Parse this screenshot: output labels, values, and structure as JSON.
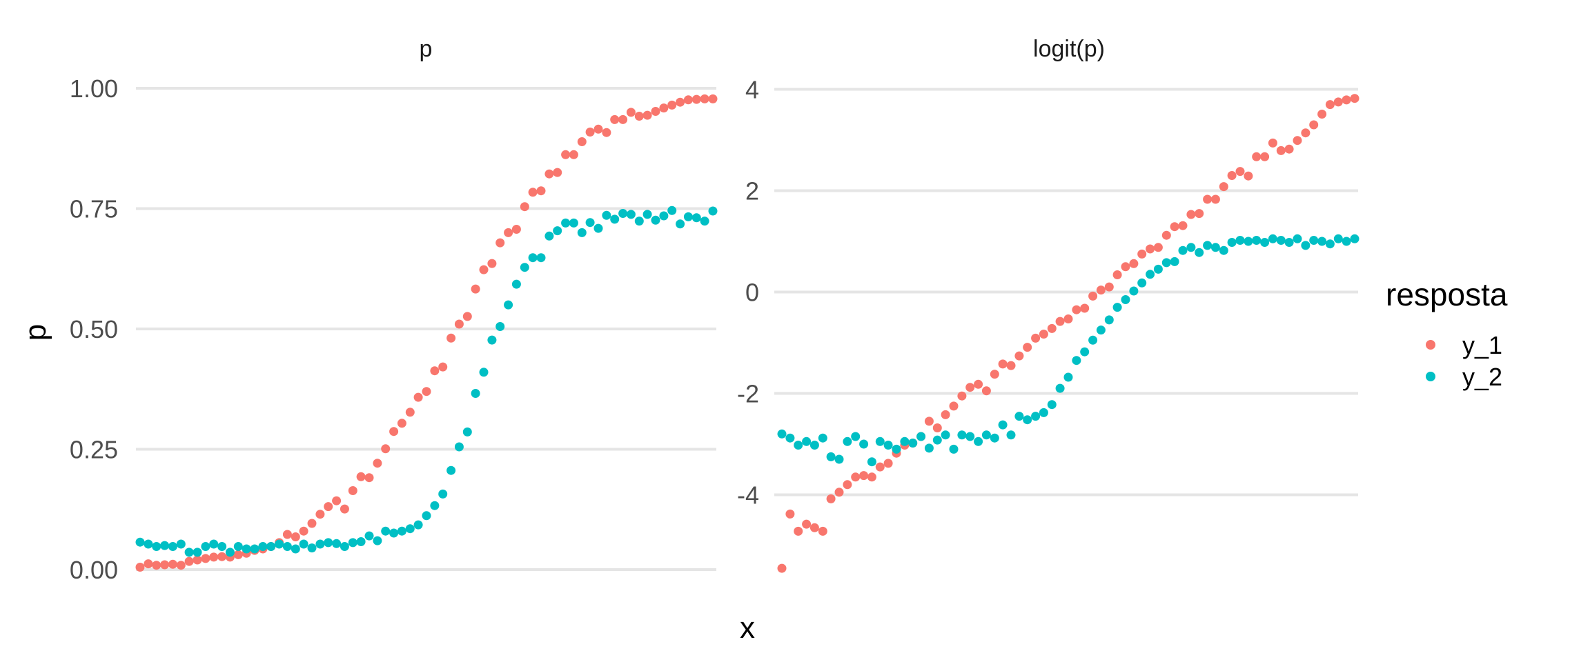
{
  "chart_data": {
    "type": "scatter",
    "facets": [
      "p",
      "logit(p)"
    ],
    "xlabel": "x",
    "ylabel": "p",
    "legend": {
      "title": "resposta",
      "position": "right",
      "entries": [
        {
          "name": "y_1",
          "color": "#f8766d"
        },
        {
          "name": "y_2",
          "color": "#00bfc4"
        }
      ]
    },
    "grid": {
      "major_y": true,
      "x": false
    },
    "panels": [
      {
        "facet": "p",
        "ylim": [
          -0.0,
          1.0
        ],
        "yticks": [
          0.0,
          0.25,
          0.5,
          0.75,
          1.0
        ],
        "ytick_labels": [
          "0.00",
          "0.25",
          "0.50",
          "0.75",
          "1.00"
        ],
        "series": [
          {
            "name": "y_1",
            "values": [
              0.005,
              0.012,
              0.009,
              0.01,
              0.011,
              0.009,
              0.017,
              0.02,
              0.023,
              0.026,
              0.027,
              0.026,
              0.031,
              0.034,
              0.04,
              0.043,
              0.048,
              0.056,
              0.073,
              0.068,
              0.08,
              0.096,
              0.115,
              0.131,
              0.143,
              0.126,
              0.164,
              0.193,
              0.191,
              0.221,
              0.251,
              0.287,
              0.304,
              0.327,
              0.358,
              0.37,
              0.413,
              0.421,
              0.481,
              0.51,
              0.526,
              0.583,
              0.623,
              0.636,
              0.679,
              0.7,
              0.707,
              0.754,
              0.784,
              0.787,
              0.822,
              0.825,
              0.862,
              0.862,
              0.889,
              0.909,
              0.915,
              0.908,
              0.935,
              0.935,
              0.95,
              0.942,
              0.944,
              0.952,
              0.959,
              0.965,
              0.971,
              0.976,
              0.977,
              0.978,
              0.978
            ]
          },
          {
            "name": "y_2",
            "values": [
              0.057,
              0.053,
              0.048,
              0.05,
              0.048,
              0.053,
              0.036,
              0.036,
              0.048,
              0.053,
              0.048,
              0.036,
              0.048,
              0.043,
              0.043,
              0.048,
              0.048,
              0.053,
              0.048,
              0.043,
              0.053,
              0.045,
              0.053,
              0.056,
              0.054,
              0.048,
              0.056,
              0.058,
              0.07,
              0.06,
              0.08,
              0.076,
              0.08,
              0.085,
              0.093,
              0.112,
              0.133,
              0.157,
              0.206,
              0.255,
              0.286,
              0.366,
              0.41,
              0.477,
              0.505,
              0.55,
              0.593,
              0.628,
              0.648,
              0.648,
              0.693,
              0.704,
              0.72,
              0.72,
              0.7,
              0.721,
              0.709,
              0.736,
              0.728,
              0.74,
              0.738,
              0.724,
              0.738,
              0.726,
              0.735,
              0.746,
              0.718,
              0.733,
              0.731,
              0.724,
              0.745
            ]
          }
        ]
      },
      {
        "facet": "logit(p)",
        "ylim": [
          -5.4,
          4.0
        ],
        "yticks": [
          -4,
          -2,
          0,
          2,
          4
        ],
        "ytick_labels": [
          "-4",
          "-2",
          "0",
          "2",
          "4"
        ],
        "series": [
          {
            "name": "y_1",
            "values": [
              -5.45,
              -4.38,
              -4.72,
              -4.58,
              -4.65,
              -4.72,
              -4.08,
              -3.95,
              -3.8,
              -3.65,
              -3.62,
              -3.65,
              -3.45,
              -3.38,
              -3.18,
              -3.02,
              -2.98,
              -2.85,
              -2.55,
              -2.68,
              -2.42,
              -2.25,
              -2.05,
              -1.88,
              -1.82,
              -1.95,
              -1.62,
              -1.42,
              -1.45,
              -1.26,
              -1.09,
              -0.91,
              -0.83,
              -0.72,
              -0.58,
              -0.53,
              -0.35,
              -0.32,
              -0.08,
              0.04,
              0.1,
              0.34,
              0.5,
              0.56,
              0.75,
              0.85,
              0.88,
              1.12,
              1.29,
              1.31,
              1.53,
              1.55,
              1.83,
              1.83,
              2.08,
              2.3,
              2.38,
              2.29,
              2.67,
              2.67,
              2.94,
              2.79,
              2.82,
              2.99,
              3.14,
              3.3,
              3.51,
              3.7,
              3.75,
              3.79,
              3.82
            ]
          },
          {
            "name": "y_2",
            "values": [
              -2.8,
              -2.88,
              -3.02,
              -2.95,
              -3.02,
              -2.88,
              -3.25,
              -3.3,
              -2.95,
              -2.85,
              -3.0,
              -3.35,
              -2.95,
              -3.02,
              -3.1,
              -2.95,
              -2.98,
              -2.85,
              -3.08,
              -2.92,
              -2.82,
              -3.1,
              -2.82,
              -2.85,
              -2.95,
              -2.82,
              -2.88,
              -2.62,
              -2.82,
              -2.45,
              -2.52,
              -2.45,
              -2.38,
              -2.22,
              -1.9,
              -1.68,
              -1.35,
              -1.18,
              -0.95,
              -0.75,
              -0.55,
              -0.3,
              -0.15,
              0.02,
              0.18,
              0.35,
              0.45,
              0.58,
              0.6,
              0.82,
              0.88,
              0.78,
              0.92,
              0.88,
              0.82,
              0.98,
              1.02,
              1.0,
              1.02,
              0.98,
              1.05,
              1.02,
              0.98,
              1.05,
              0.92,
              1.02,
              1.0,
              0.95,
              1.05,
              1.0,
              1.05
            ]
          }
        ]
      }
    ]
  }
}
